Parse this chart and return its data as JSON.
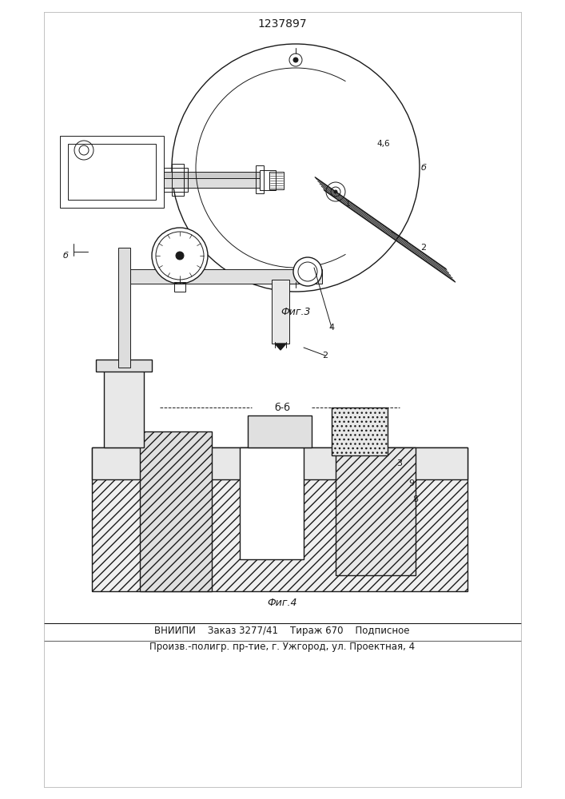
{
  "patent_number": "1237897",
  "fig3_label": "Фиг.3",
  "fig4_label": "Фиг.4",
  "section_label": "б-б",
  "footer_line1": "ВНИИПИ    Заказ 3277/41    Тираж 670    Подписное",
  "footer_line2": "Произв.-полигр. пр-тие, г. Ужгород, ул. Проектная, 4",
  "bg_color": "#ffffff",
  "line_color": "#1a1a1a",
  "hatch_color": "#333333",
  "font_size_patent": 10,
  "font_size_label": 9,
  "font_size_footer": 8.5
}
